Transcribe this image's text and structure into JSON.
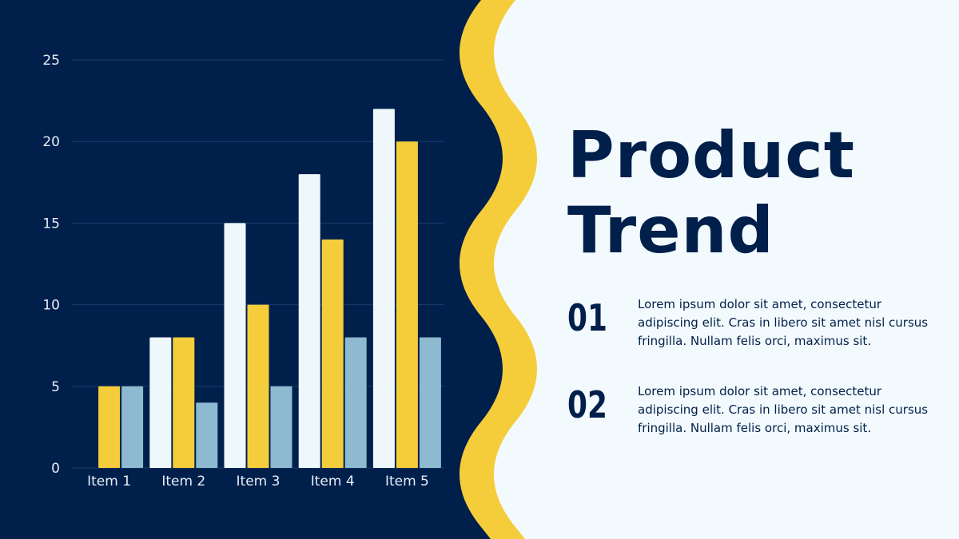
{
  "colors": {
    "navy": "#001f4b",
    "yellow": "#f5cd3a",
    "white_bar": "#eef8fc",
    "blue_bar": "#8dbad0",
    "panel": "#f3fafd",
    "grid": "#1d3d6a",
    "tick_text": "#e6eef6"
  },
  "slide": {
    "title_line1": "Product",
    "title_line2": "Trend",
    "points": [
      {
        "number": "01",
        "text": "Lorem ipsum dolor sit amet, consectetur adipiscing elit. Cras in libero sit amet nisl cursus fringilla. Nullam felis orci, maximus sit."
      },
      {
        "number": "02",
        "text": "Lorem ipsum dolor sit amet, consectetur adipiscing elit. Cras in libero sit amet nisl cursus fringilla. Nullam felis orci, maximus sit."
      }
    ]
  },
  "chart_data": {
    "type": "bar",
    "categories": [
      "Item 1",
      "Item 2",
      "Item 3",
      "Item 4",
      "Item 5"
    ],
    "series": [
      {
        "values": [
          0,
          8,
          15,
          18,
          22
        ],
        "color": "#eef8fc"
      },
      {
        "values": [
          5,
          8,
          10,
          14,
          20
        ],
        "color": "#f5cd3a"
      },
      {
        "values": [
          5,
          4,
          5,
          8,
          8
        ],
        "color": "#8dbad0"
      }
    ],
    "ylim": [
      0,
      25
    ],
    "yticks": [
      0,
      5,
      10,
      15,
      20,
      25
    ],
    "grid": true,
    "legend": "none"
  }
}
